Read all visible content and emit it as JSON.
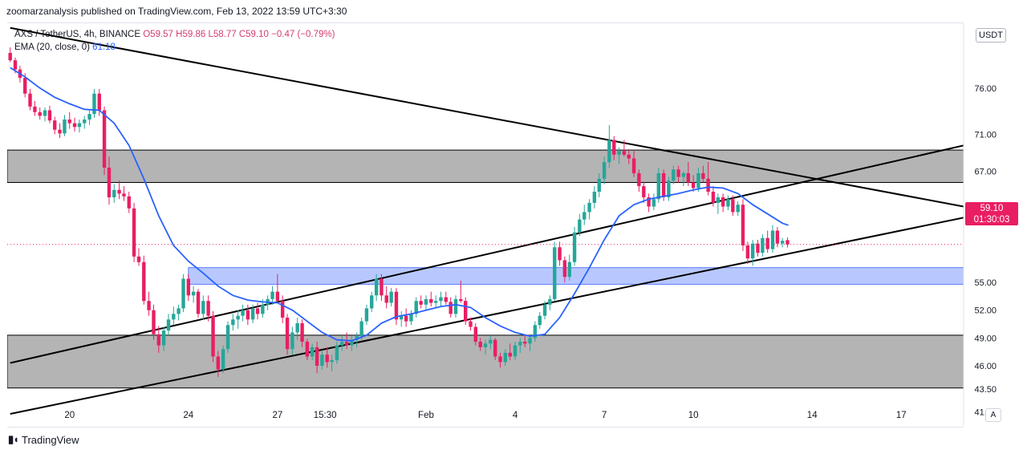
{
  "header": {
    "published_by": "zoomarzanalysis published on TradingView.com, Feb 13, 2022 13:59 UTC+3:30"
  },
  "legend": {
    "symbol": "AXS / TetherUS, 4h, BINANCE",
    "open": "O59.57",
    "high": "H59.86",
    "low": "L58.77",
    "close": "C59.10",
    "change": "−0.47 (−0.79%)",
    "ema_label": "EMA (20, close, 0)",
    "ema_value": "61.18"
  },
  "currency_badge": "USDT",
  "last_price": {
    "price": "59.10",
    "countdown": "01:30:03"
  },
  "brand": "TradingView",
  "auto_button": "A",
  "colors": {
    "up": "#26a69a",
    "down": "#e91e63",
    "ema": "#2962ff",
    "zone_gray": "#b4b4b4",
    "zone_blue": "#b8c8ff",
    "trendline": "#000000"
  },
  "chart_data": {
    "type": "candlestick",
    "symbol": "AXS/USDT",
    "timeframe": "4h",
    "exchange": "BINANCE",
    "y_ticks": [
      76.0,
      71.0,
      67.0,
      63.0,
      59.0,
      55.0,
      52.0,
      49.0,
      46.0,
      43.5,
      41.0
    ],
    "y_tick_labels": [
      "76.00",
      "71.00",
      "67.00",
      "63.00",
      "55.00",
      "52.00",
      "49.00",
      "46.00",
      "43.50",
      "41.00"
    ],
    "x_ticks": [
      {
        "label": "20",
        "x": 20.0
      },
      {
        "label": "24",
        "x": 24.0
      },
      {
        "label": "27",
        "x": 27.0
      },
      {
        "label": "15:30",
        "x": 28.6
      },
      {
        "label": "Feb",
        "x": 32.0
      },
      {
        "label": "4",
        "x": 35.0
      },
      {
        "label": "7",
        "x": 38.0
      },
      {
        "label": "10",
        "x": 41.0
      },
      {
        "label": "14",
        "x": 45.0
      },
      {
        "label": "17",
        "x": 48.0
      }
    ],
    "x_range": [
      17.9,
      50.1
    ],
    "y_range": [
      39.5,
      83.0
    ],
    "zones": [
      {
        "name": "resistance-zone",
        "color": "gray",
        "low": 65.8,
        "high": 69.3
      },
      {
        "name": "demand-zone",
        "color": "blue",
        "low": 54.8,
        "high": 56.6
      },
      {
        "name": "support-zone",
        "color": "gray",
        "low": 43.6,
        "high": 49.3
      }
    ],
    "trendlines": [
      {
        "name": "descending-trendline",
        "points": [
          [
            18.0,
            82.5
          ],
          [
            50.1,
            63.2
          ]
        ]
      },
      {
        "name": "channel-upper-line",
        "points": [
          [
            18.0,
            46.3
          ],
          [
            50.1,
            69.8
          ]
        ]
      },
      {
        "name": "channel-lower-line",
        "points": [
          [
            18.0,
            40.8
          ],
          [
            50.1,
            62.0
          ]
        ]
      }
    ],
    "candles_compact": [
      "18.0,79.8,80.4,78.8,79.0",
      "18.17,79.0,79.3,77.6,78.0",
      "18.33,78.0,78.4,76.6,77.1",
      "18.5,77.1,77.6,75.0,75.4",
      "18.67,75.4,75.9,73.6,74.0",
      "18.83,74.0,74.6,73.0,73.4",
      "19.0,73.4,73.9,72.6,73.0",
      "19.17,73.0,73.9,72.4,73.6",
      "19.33,73.6,74.1,72.2,72.5",
      "19.5,72.5,72.9,71.0,71.5",
      "19.67,71.5,72.2,70.6,71.1",
      "19.83,71.1,73.1,70.8,72.6",
      "20.0,72.6,73.4,71.6,72.2",
      "20.17,72.2,72.8,71.3,71.8",
      "20.33,71.8,72.6,71.2,72.2",
      "20.5,72.2,73.0,71.6,72.6",
      "20.67,72.6,73.6,72.0,73.2",
      "20.83,73.2,75.9,72.8,75.4",
      "21.0,75.4,75.9,73.0,73.6",
      "21.17,73.6,74.0,66.6,67.4",
      "21.33,67.4,68.6,63.4,64.2",
      "21.5,64.2,65.6,63.6,65.0",
      "21.67,65.0,66.0,64.0,64.6",
      "21.83,64.6,65.4,63.8,64.3",
      "22.0,64.3,64.8,62.5,63.0",
      "22.17,63.0,63.6,57.2,57.8",
      "22.33,57.8,58.7,56.8,57.2",
      "22.5,57.2,57.9,52.6,53.0",
      "22.67,53.0,54.0,51.4,52.0",
      "22.83,52.0,52.6,48.8,49.4",
      "23.0,49.4,50.3,47.4,48.2",
      "23.17,48.2,50.2,47.6,49.8",
      "23.33,49.8,51.6,49.3,51.0",
      "23.5,51.0,52.4,50.4,51.6",
      "23.67,51.6,52.6,50.9,52.2",
      "23.83,52.2,55.9,51.8,55.4",
      "24.0,55.4,55.9,53.0,53.6",
      "24.17,53.6,54.6,52.8,54.0",
      "24.33,54.0,54.3,51.2,51.6",
      "24.5,51.6,53.6,51.0,53.0",
      "24.67,53.0,53.6,50.8,51.4",
      "24.83,51.4,51.9,46.4,47.0",
      "25.0,47.0,47.6,44.8,45.6",
      "25.17,45.6,48.2,45.2,47.8",
      "25.33,47.8,50.8,47.4,50.4",
      "25.5,50.4,51.6,49.8,51.0",
      "25.67,51.0,52.0,50.0,51.4",
      "25.83,51.4,52.6,50.8,52.0",
      "26.0,52.0,52.6,50.4,51.0",
      "26.17,51.0,52.6,50.6,52.2",
      "26.33,52.2,52.8,51.0,51.6",
      "26.5,51.6,53.2,51.2,52.6",
      "26.67,52.6,53.6,52.0,53.2",
      "26.83,53.2,54.6,52.6,54.0",
      "27.0,54.0,55.9,52.8,53.0",
      "27.17,53.0,53.6,50.6,51.2",
      "27.33,51.2,51.6,47.2,47.8",
      "27.5,47.8,50.2,47.2,49.6",
      "27.67,49.6,51.2,48.8,50.6",
      "27.83,50.6,51.0,48.0,48.6",
      "28.0,48.6,48.9,46.6,47.0",
      "28.17,47.0,48.4,46.6,48.0",
      "28.33,48.0,48.6,45.2,46.0",
      "28.5,46.0,47.6,45.6,47.2",
      "28.67,47.2,48.0,45.8,46.4",
      "28.83,46.4,47.2,45.4,46.6",
      "29.0,46.6,48.6,46.2,48.2",
      "29.17,48.2,49.2,47.6,48.6",
      "29.33,48.6,49.6,47.8,48.2",
      "29.5,48.2,49.2,47.6,48.8",
      "29.67,48.8,49.6,48.0,49.2",
      "29.83,49.2,51.2,48.8,50.8",
      "30.0,50.8,52.6,50.4,52.2",
      "30.17,52.2,54.0,51.8,53.6",
      "30.33,53.6,55.9,53.0,55.4",
      "30.5,55.4,55.9,53.0,53.6",
      "30.67,53.6,54.6,52.2,52.8",
      "30.83,52.8,54.4,52.4,54.0",
      "31.0,54.0,54.4,50.4,51.0",
      "31.17,51.0,51.9,50.2,51.4",
      "31.33,51.4,52.2,50.2,50.8",
      "31.5,50.8,52.0,50.4,51.6",
      "31.67,51.6,53.4,51.2,53.0",
      "31.83,53.0,53.6,52.2,52.6",
      "32.0,52.6,53.6,52.0,53.2",
      "32.17,53.2,54.0,52.4,52.8",
      "32.33,52.8,53.6,52.2,53.0",
      "32.5,53.0,54.0,52.4,53.4",
      "32.67,53.4,54.0,52.6,52.9",
      "32.83,52.9,53.4,51.2,51.6",
      "33.0,51.6,53.6,51.2,53.2",
      "33.17,53.2,55.2,52.8,53.0",
      "33.33,53.0,53.4,50.4,50.8",
      "33.5,50.8,51.2,49.8,50.2",
      "33.67,50.2,50.6,48.2,48.6",
      "33.83,48.6,49.0,47.6,48.0",
      "34.0,48.0,48.8,47.2,48.4",
      "34.17,48.4,49.2,47.8,48.8",
      "34.33,48.8,49.0,46.6,47.0",
      "34.5,47.0,47.4,45.8,46.4",
      "34.67,46.4,47.8,46.0,47.4",
      "34.83,47.4,48.4,46.6,47.0",
      "35.0,47.0,48.6,46.6,48.2",
      "35.17,48.2,49.0,47.4,48.6",
      "35.33,48.6,49.4,48.0,48.4",
      "35.5,48.4,49.4,47.6,49.0",
      "35.67,49.0,50.8,48.6,50.4",
      "35.83,50.4,51.8,50.0,51.4",
      "36.0,51.4,53.0,51.0,52.6",
      "36.17,52.6,53.6,52.0,53.2",
      "36.33,53.2,59.4,53.0,58.8",
      "36.5,58.8,59.4,56.8,57.4",
      "36.67,57.4,57.8,55.0,55.6",
      "36.83,55.6,58.0,55.2,57.2",
      "37.0,57.2,61.0,56.8,60.4",
      "37.17,60.4,62.4,60.0,61.8",
      "37.33,61.8,63.4,61.2,62.6",
      "37.5,62.6,64.0,61.8,63.6",
      "37.67,63.6,65.4,63.0,64.8",
      "37.83,64.8,66.8,64.2,66.2",
      "38.0,66.2,68.6,65.6,68.0",
      "38.17,68.0,72.0,67.4,70.4",
      "38.33,70.4,70.8,68.2,68.8",
      "38.5,68.8,69.6,67.8,69.2",
      "38.67,69.2,70.4,68.6,68.8",
      "38.83,68.8,69.4,67.8,68.4",
      "39.0,68.4,69.2,66.4,66.8",
      "39.17,66.8,67.2,64.8,65.4",
      "39.33,65.4,65.8,63.6,64.2",
      "39.5,64.2,64.6,62.6,63.2",
      "39.67,63.2,64.6,62.8,64.0",
      "39.83,64.0,67.4,63.6,66.8",
      "40.0,66.8,67.2,63.8,64.2",
      "40.17,64.2,66.4,63.8,66.0",
      "40.33,66.0,67.6,65.6,67.2",
      "40.5,67.2,67.6,65.8,66.4",
      "40.67,66.4,67.0,65.4,66.8",
      "40.83,66.8,68.0,65.4,65.8",
      "41.0,65.8,66.6,64.8,65.2",
      "41.17,65.2,67.4,64.8,66.8",
      "41.33,66.8,67.6,65.8,66.2",
      "41.5,66.2,68.0,64.4,64.8",
      "41.67,64.8,65.4,63.2,63.6",
      "41.83,63.6,64.6,62.4,64.2",
      "42.0,64.2,64.6,62.6,63.2",
      "42.17,63.2,64.4,62.8,64.0",
      "42.33,64.0,64.4,62.2,62.6",
      "42.5,62.6,63.8,62.2,63.4",
      "42.67,63.4,64.0,58.4,59.0",
      "42.83,59.0,59.4,57.0,57.6",
      "43.0,57.6,59.6,56.8,59.2",
      "43.17,59.2,59.6,57.8,58.2",
      "43.33,58.2,60.2,57.8,59.8",
      "43.5,59.8,60.6,58.2,58.6",
      "43.67,58.6,61.2,58.2,60.6",
      "43.83,60.6,61.0,58.8,59.2",
      "44.0,59.2,59.8,58.8,59.5",
      "44.17,59.57,59.86,58.77,59.10"
    ],
    "ema20": [
      [
        18.0,
        78.2
      ],
      [
        18.5,
        77.2
      ],
      [
        19.0,
        76.0
      ],
      [
        19.5,
        75.0
      ],
      [
        20.0,
        74.3
      ],
      [
        20.5,
        73.7
      ],
      [
        21.0,
        73.6
      ],
      [
        21.5,
        72.2
      ],
      [
        22.0,
        69.8
      ],
      [
        22.5,
        66.2
      ],
      [
        23.0,
        62.2
      ],
      [
        23.5,
        59.0
      ],
      [
        24.0,
        57.3
      ],
      [
        24.5,
        56.0
      ],
      [
        25.0,
        54.6
      ],
      [
        25.5,
        53.6
      ],
      [
        26.0,
        53.1
      ],
      [
        26.5,
        52.9
      ],
      [
        27.0,
        52.8
      ],
      [
        27.5,
        52.0
      ],
      [
        28.0,
        50.8
      ],
      [
        28.5,
        49.6
      ],
      [
        29.0,
        48.8
      ],
      [
        29.5,
        48.7
      ],
      [
        30.0,
        49.3
      ],
      [
        30.5,
        50.6
      ],
      [
        31.0,
        51.3
      ],
      [
        31.5,
        51.6
      ],
      [
        32.0,
        52.0
      ],
      [
        32.5,
        52.4
      ],
      [
        33.0,
        52.6
      ],
      [
        33.5,
        52.3
      ],
      [
        34.0,
        51.2
      ],
      [
        34.5,
        50.3
      ],
      [
        35.0,
        49.6
      ],
      [
        35.5,
        49.2
      ],
      [
        36.0,
        49.4
      ],
      [
        36.5,
        51.2
      ],
      [
        37.0,
        53.8
      ],
      [
        37.5,
        56.6
      ],
      [
        38.0,
        59.6
      ],
      [
        38.5,
        62.2
      ],
      [
        39.0,
        63.4
      ],
      [
        39.5,
        64.0
      ],
      [
        40.0,
        64.3
      ],
      [
        40.5,
        64.6
      ],
      [
        41.0,
        65.0
      ],
      [
        41.5,
        65.3
      ],
      [
        42.0,
        65.2
      ],
      [
        42.5,
        64.6
      ],
      [
        43.0,
        63.4
      ],
      [
        43.5,
        62.4
      ],
      [
        44.0,
        61.4
      ],
      [
        44.2,
        61.18
      ]
    ],
    "last_close": 59.1
  }
}
